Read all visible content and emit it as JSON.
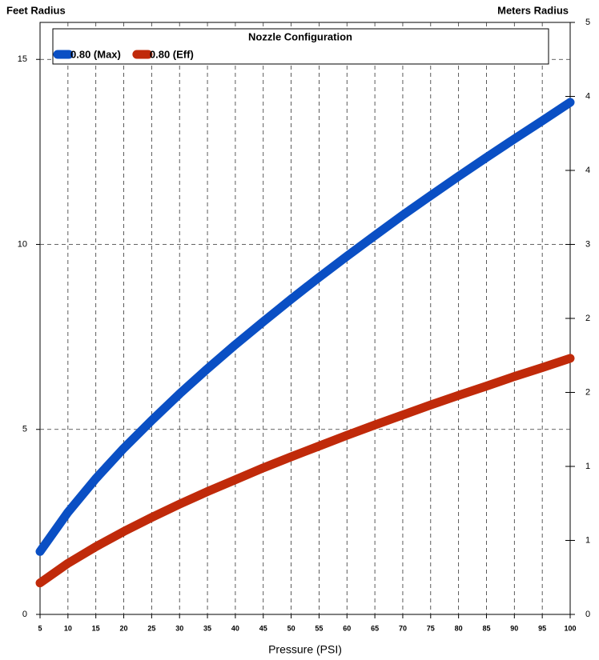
{
  "chart_data": {
    "type": "line",
    "title": "Nozzle Configuration",
    "y_label": "Feet Radius",
    "y2_label": "Meters Radius",
    "x_label": "Pressure (PSI)",
    "x": [
      5,
      10,
      15,
      20,
      25,
      30,
      35,
      40,
      45,
      50,
      55,
      60,
      65,
      70,
      75,
      80,
      85,
      90,
      95,
      100
    ],
    "xlim": [
      5,
      100
    ],
    "xticks": [
      5,
      10,
      15,
      20,
      25,
      30,
      35,
      40,
      45,
      50,
      55,
      60,
      65,
      70,
      75,
      80,
      85,
      90,
      95,
      100
    ],
    "ylim": [
      0,
      16
    ],
    "yticks": [
      0,
      5,
      10,
      15
    ],
    "y2lim": [
      0,
      4.8768
    ],
    "y2ticks": [
      {
        "value": 0,
        "label": "0"
      },
      {
        "value": 0.6096,
        "label": "1"
      },
      {
        "value": 1.2192,
        "label": "1"
      },
      {
        "value": 1.8288,
        "label": "2"
      },
      {
        "value": 2.4384,
        "label": "2"
      },
      {
        "value": 3.048,
        "label": "3"
      },
      {
        "value": 3.6576,
        "label": "4"
      },
      {
        "value": 4.2672,
        "label": "4"
      },
      {
        "value": 4.8768,
        "label": "5"
      }
    ],
    "grid": true,
    "series": [
      {
        "name": "0.80 (Max)",
        "color": "#0a4fc4",
        "values": [
          1.7,
          2.76,
          3.67,
          4.49,
          5.24,
          5.96,
          6.64,
          7.29,
          7.91,
          8.52,
          9.11,
          9.68,
          10.24,
          10.79,
          11.32,
          11.84,
          12.35,
          12.85,
          13.34,
          13.84
        ]
      },
      {
        "name": "0.80 (Eff)",
        "color": "#c02a0a",
        "values": [
          0.85,
          1.38,
          1.83,
          2.24,
          2.62,
          2.98,
          3.32,
          3.64,
          3.96,
          4.26,
          4.55,
          4.84,
          5.12,
          5.39,
          5.66,
          5.92,
          6.17,
          6.43,
          6.67,
          6.92
        ]
      }
    ]
  }
}
